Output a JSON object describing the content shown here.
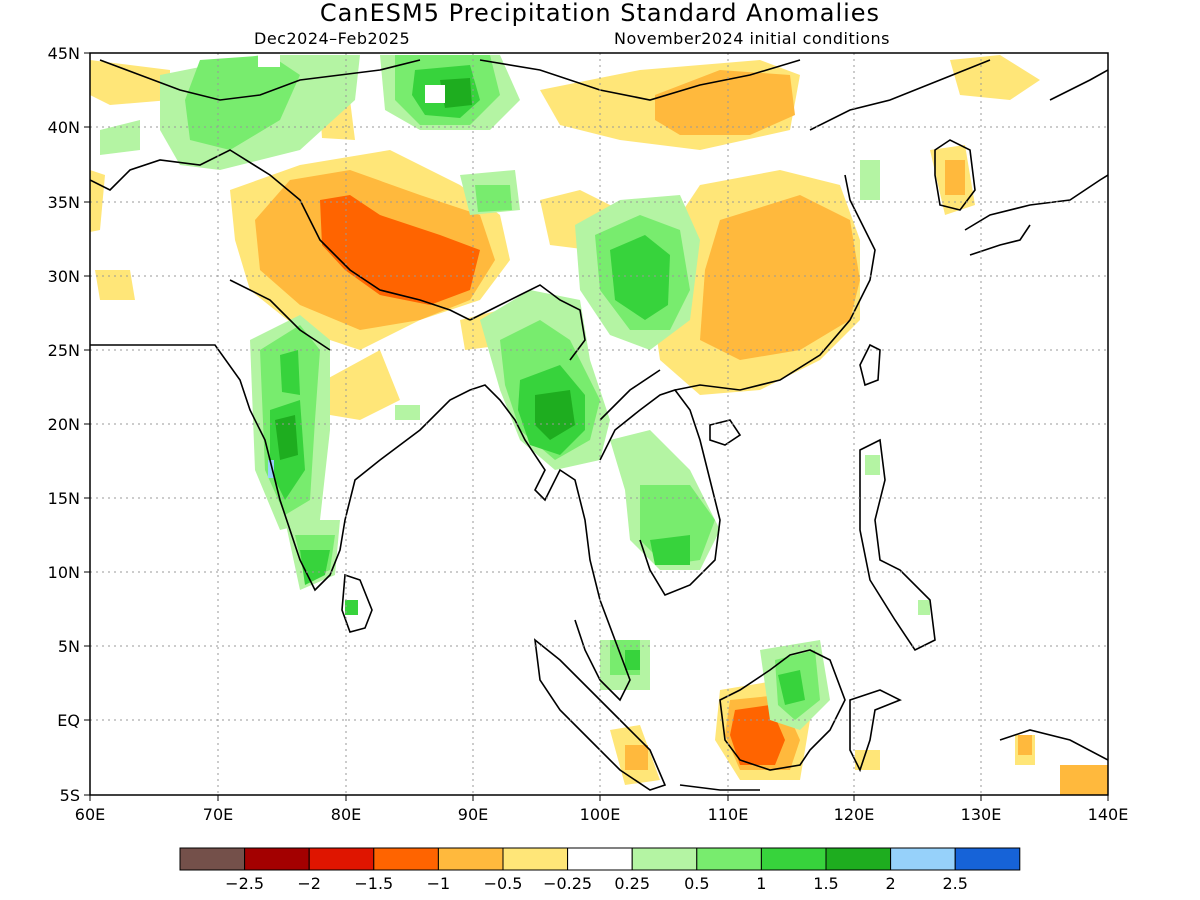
{
  "title": "CanESM5 Precipitation Standard Anomalies",
  "period": "Dec2024–Feb2025",
  "initial_conditions": "November2024 initial conditions",
  "lat_labels": [
    "45N",
    "40N",
    "35N",
    "30N",
    "25N",
    "20N",
    "15N",
    "10N",
    "5N",
    "EQ",
    "5S"
  ],
  "lon_labels": [
    "60E",
    "70E",
    "80E",
    "90E",
    "100E",
    "110E",
    "120E",
    "130E",
    "140E"
  ],
  "legend": {
    "colors": [
      "#74504a",
      "#a30000",
      "#df1500",
      "#ff6400",
      "#ffb93d",
      "#ffe678",
      "#ffffff",
      "#b4f4a3",
      "#78ec6e",
      "#37d33c",
      "#1ead1f",
      "#96d1fa",
      "#1663d8"
    ],
    "labels": [
      "−2.5",
      "−2",
      "−1.5",
      "−1",
      "−0.5",
      "−0.25",
      "0.25",
      "0.5",
      "1",
      "1.5",
      "2",
      "2.5"
    ]
  },
  "colors": {
    "land_outline": "#000000",
    "grid": "#999999"
  }
}
